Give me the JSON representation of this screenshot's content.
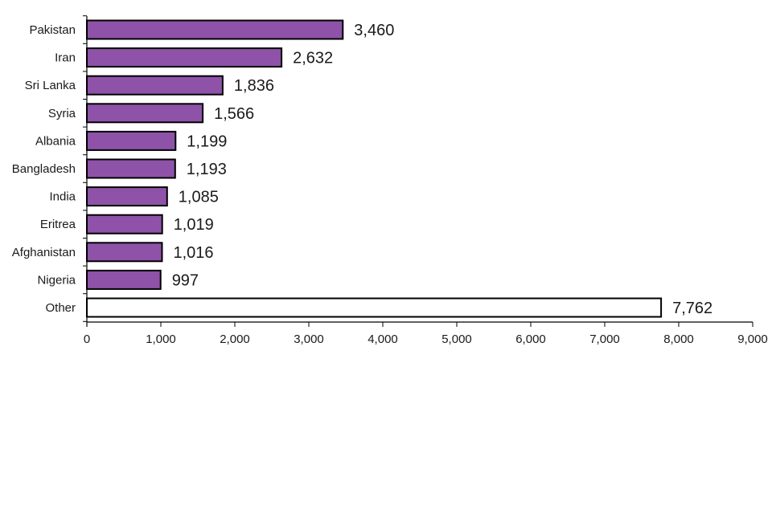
{
  "chart_data": {
    "type": "bar",
    "orientation": "horizontal",
    "title": "",
    "xlabel": "",
    "ylabel": "",
    "categories": [
      "Pakistan",
      "Iran",
      "Sri Lanka",
      "Syria",
      "Albania",
      "Bangladesh",
      "India",
      "Eritrea",
      "Afghanistan",
      "Nigeria",
      "Other"
    ],
    "values": [
      3460,
      2632,
      1836,
      1566,
      1199,
      1193,
      1085,
      1019,
      1016,
      997,
      7762
    ],
    "data_labels": [
      "3,460",
      "2,632",
      "1,836",
      "1,566",
      "1,199",
      "1,193",
      "1,085",
      "1,019",
      "1,016",
      "997",
      "7,762"
    ],
    "xlim": [
      0,
      9000
    ],
    "xticks": [
      0,
      1000,
      2000,
      3000,
      4000,
      5000,
      6000,
      7000,
      8000,
      9000
    ],
    "xtick_labels": [
      "0",
      "1,000",
      "2,000",
      "3,000",
      "4,000",
      "5,000",
      "6,000",
      "7,000",
      "8,000",
      "9,000"
    ],
    "grid": false,
    "legend": "none",
    "colors": {
      "bar_fill": "#8e52a8",
      "other_fill": "#ffffff",
      "bar_stroke": "#000000",
      "axis": "#000000"
    }
  }
}
